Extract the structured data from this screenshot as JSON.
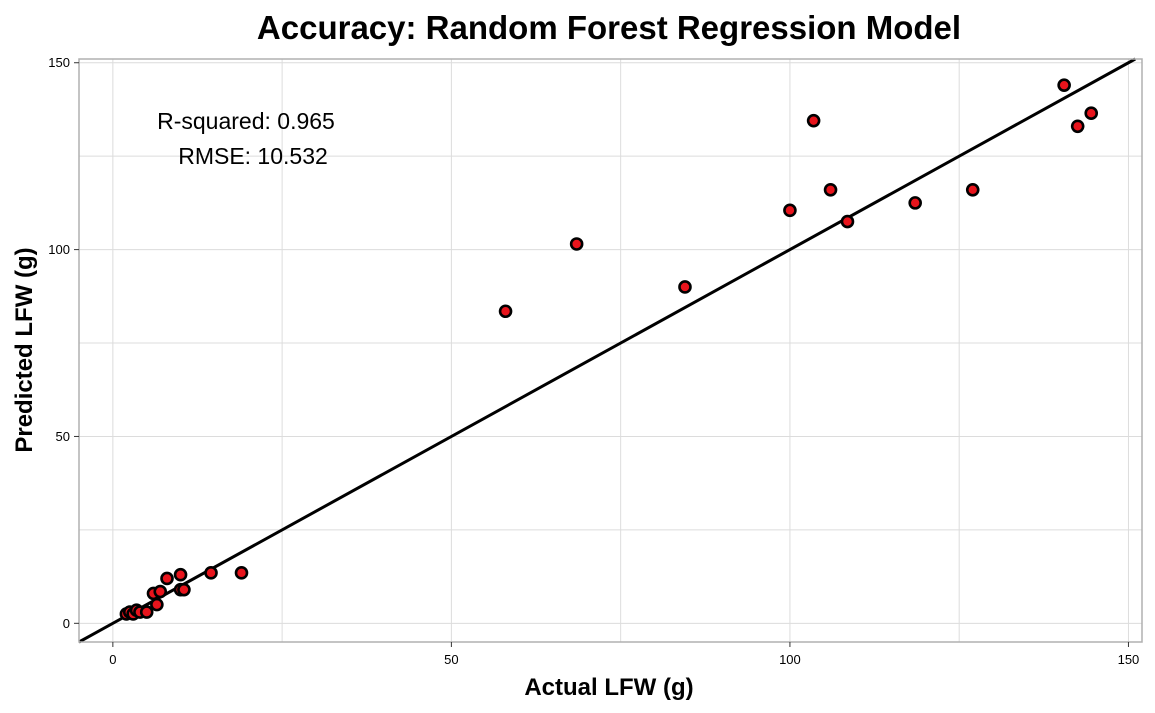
{
  "chart_data": {
    "type": "scatter",
    "title": "Accuracy: Random Forest Regression Model",
    "xlabel": "Actual LFW (g)",
    "ylabel": "Predicted LFW (g)",
    "xlim": [
      -5,
      152
    ],
    "ylim": [
      -5,
      151
    ],
    "x_ticks": [
      0,
      50,
      100,
      150
    ],
    "y_ticks": [
      0,
      50,
      100,
      150
    ],
    "grid": true,
    "annotations": [
      "R-squared:  0.965",
      "RMSE:  10.532"
    ],
    "reference_line": {
      "slope": 1,
      "intercept": 0,
      "color": "#000000"
    },
    "point_fill": "#e8141c",
    "point_stroke": "#000000",
    "points": [
      {
        "x": 2,
        "y": 2.5
      },
      {
        "x": 2.5,
        "y": 3
      },
      {
        "x": 3,
        "y": 2.5
      },
      {
        "x": 3.5,
        "y": 3.5
      },
      {
        "x": 4,
        "y": 3
      },
      {
        "x": 5,
        "y": 3
      },
      {
        "x": 6,
        "y": 8
      },
      {
        "x": 6.5,
        "y": 5
      },
      {
        "x": 7,
        "y": 8.5
      },
      {
        "x": 8,
        "y": 12
      },
      {
        "x": 10,
        "y": 13
      },
      {
        "x": 10,
        "y": 9
      },
      {
        "x": 10.5,
        "y": 9
      },
      {
        "x": 14.5,
        "y": 13.5
      },
      {
        "x": 19,
        "y": 13.5
      },
      {
        "x": 58,
        "y": 83.5
      },
      {
        "x": 68.5,
        "y": 101.5
      },
      {
        "x": 84.5,
        "y": 90
      },
      {
        "x": 100,
        "y": 110.5
      },
      {
        "x": 103.5,
        "y": 134.5
      },
      {
        "x": 106,
        "y": 116
      },
      {
        "x": 108.5,
        "y": 107.5
      },
      {
        "x": 118.5,
        "y": 112.5
      },
      {
        "x": 127,
        "y": 116
      },
      {
        "x": 140.5,
        "y": 144
      },
      {
        "x": 142.5,
        "y": 133
      },
      {
        "x": 144.5,
        "y": 136.5
      }
    ]
  }
}
